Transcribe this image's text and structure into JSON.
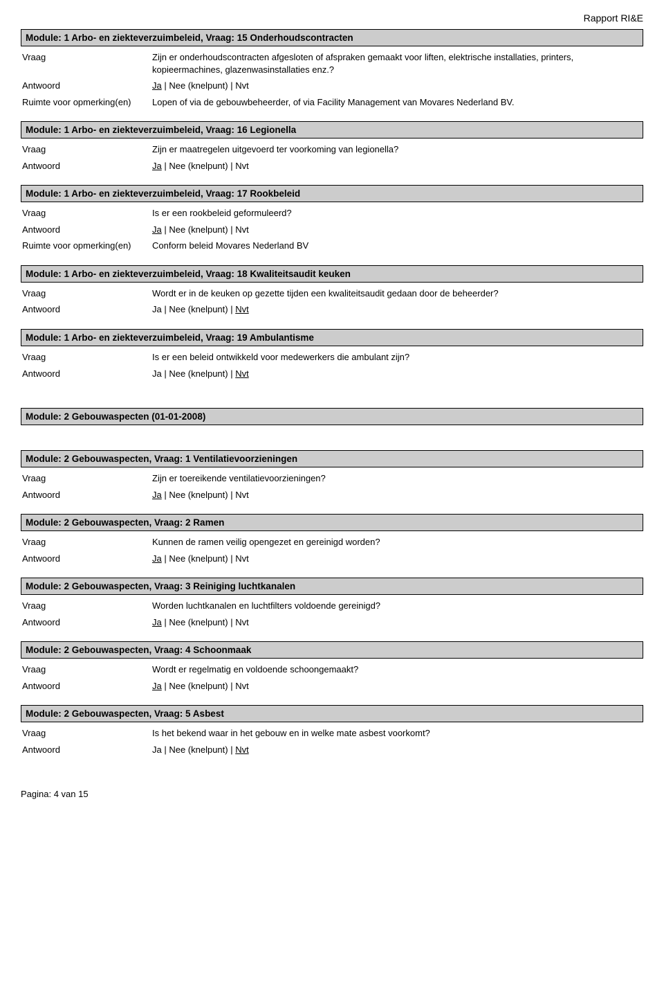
{
  "reportTitle": "Rapport RI&E",
  "labels": {
    "vraag": "Vraag",
    "antwoord": "Antwoord",
    "ruimte": "Ruimte voor opmerking(en)"
  },
  "footer": "Pagina:  4  van 15",
  "modules": [
    {
      "header": "Module: 1 Arbo- en ziekteverzuimbeleid, Vraag: 15 Onderhoudscontracten",
      "vraag": "Zijn er onderhoudscontracten afgesloten of afspraken gemaakt voor liften, elektrische installaties, printers, kopieermachines, glazenwasinstallaties enz.?",
      "answer": {
        "ja": true,
        "nee": false,
        "nvt": false
      },
      "ruimte": "Lopen of via de gebouwbeheerder, of via Facility Management van Movares Nederland BV."
    },
    {
      "header": "Module: 1 Arbo- en ziekteverzuimbeleid, Vraag: 16 Legionella",
      "vraag": "Zijn er maatregelen uitgevoerd ter voorkoming van legionella?",
      "answer": {
        "ja": true,
        "nee": false,
        "nvt": false
      }
    },
    {
      "header": "Module: 1 Arbo- en ziekteverzuimbeleid, Vraag: 17 Rookbeleid",
      "vraag": "Is er een rookbeleid geformuleerd?",
      "answer": {
        "ja": true,
        "nee": false,
        "nvt": false
      },
      "ruimte": "Conform beleid Movares Nederland BV"
    },
    {
      "header": "Module: 1 Arbo- en ziekteverzuimbeleid, Vraag: 18 Kwaliteitsaudit keuken",
      "vraag": "Wordt er in de keuken op gezette tijden een kwaliteitsaudit gedaan door de beheerder?",
      "answer": {
        "ja": false,
        "nee": false,
        "nvt": true
      }
    },
    {
      "header": "Module: 1 Arbo- en ziekteverzuimbeleid, Vraag: 19 Ambulantisme",
      "vraag": "Is er een beleid ontwikkeld voor medewerkers die ambulant zijn?",
      "answer": {
        "ja": false,
        "nee": false,
        "nvt": true
      }
    },
    {
      "header": "Module: 2 Gebouwaspecten (01-01-2008)",
      "sectionOnly": true
    },
    {
      "header": "Module: 2 Gebouwaspecten, Vraag: 1 Ventilatievoorzieningen",
      "vraag": "Zijn er toereikende ventilatievoorzieningen?",
      "answer": {
        "ja": true,
        "nee": false,
        "nvt": false
      }
    },
    {
      "header": "Module: 2 Gebouwaspecten, Vraag: 2 Ramen",
      "vraag": "Kunnen de ramen veilig opengezet en gereinigd worden?",
      "answer": {
        "ja": true,
        "nee": false,
        "nvt": false
      }
    },
    {
      "header": "Module: 2 Gebouwaspecten, Vraag: 3 Reiniging luchtkanalen",
      "vraag": "Worden luchtkanalen en luchtfilters voldoende gereinigd?",
      "answer": {
        "ja": true,
        "nee": false,
        "nvt": false
      }
    },
    {
      "header": "Module: 2 Gebouwaspecten, Vraag: 4 Schoonmaak",
      "vraag": "Wordt er regelmatig en voldoende schoongemaakt?",
      "answer": {
        "ja": true,
        "nee": false,
        "nvt": false
      }
    },
    {
      "header": "Module: 2 Gebouwaspecten, Vraag: 5 Asbest",
      "vraag": "Is het bekend waar in het gebouw en in welke mate asbest voorkomt?",
      "answer": {
        "ja": false,
        "nee": false,
        "nvt": true
      }
    }
  ]
}
